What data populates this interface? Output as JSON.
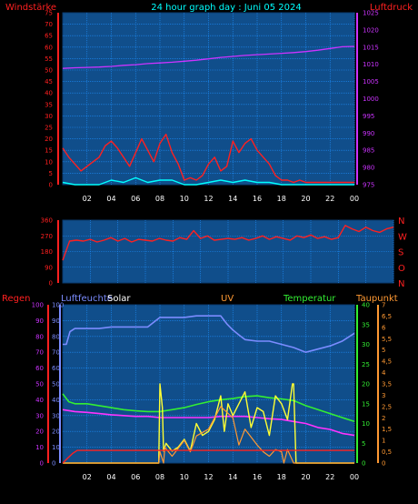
{
  "title": "24 hour graph day : Juni 05 2024",
  "colors": {
    "plot_bg": "#104e8b",
    "grid": "#1e90ff",
    "wind_gust": "#ff2020",
    "wind_avg": "#00ffff",
    "pressure": "#cc33ff",
    "direction": "#ff2020",
    "humidity": "#7b8cff",
    "solar": "#ffff33",
    "uv": "#ff9933",
    "temperature": "#33ee33",
    "dewpoint": "#ff33ff",
    "rain": "#ff2020",
    "label_red": "#ff2020",
    "label_purple": "#cc33ff",
    "label_blue": "#7b8cff",
    "label_green": "#33ee33",
    "label_orange": "#ff9933",
    "label_white": "#ffffff",
    "label_cyan": "#00ffff"
  },
  "chart_data": [
    {
      "type": "line",
      "panel": "wind-pressure",
      "x_ticks": [
        "02",
        "04",
        "06",
        "08",
        "10",
        "12",
        "14",
        "16",
        "18",
        "20",
        "22",
        "00"
      ],
      "left_axis": {
        "label": "Windstärke",
        "ticks": [
          0,
          5,
          10,
          15,
          20,
          25,
          30,
          35,
          40,
          45,
          50,
          55,
          60,
          65,
          70,
          75
        ],
        "range": [
          0,
          75
        ]
      },
      "right_axis": {
        "label": "Luftdruck",
        "ticks": [
          975,
          980,
          985,
          990,
          995,
          1000,
          1005,
          1010,
          1015,
          1020,
          1025
        ],
        "range": [
          975,
          1025
        ]
      },
      "series": [
        {
          "key": "pressure",
          "axis": "right",
          "x": [
            0,
            1,
            2,
            3,
            4,
            5,
            6,
            7,
            8,
            9,
            10,
            11,
            12,
            13,
            14,
            15,
            16,
            17,
            18,
            19,
            20,
            21,
            22,
            23,
            24
          ],
          "y": [
            1008.8,
            1009.0,
            1009.1,
            1009.2,
            1009.4,
            1009.7,
            1009.9,
            1010.2,
            1010.4,
            1010.6,
            1010.9,
            1011.2,
            1011.6,
            1012.0,
            1012.3,
            1012.6,
            1012.8,
            1013.0,
            1013.2,
            1013.4,
            1013.7,
            1014.1,
            1014.6,
            1015.1,
            1015.2
          ]
        },
        {
          "key": "wind_gust",
          "axis": "left",
          "x": [
            0,
            0.5,
            1,
            1.5,
            2,
            2.5,
            3,
            3.5,
            4,
            4.5,
            5,
            5.5,
            6,
            6.5,
            7,
            7.5,
            8,
            8.5,
            9,
            9.5,
            10,
            10.5,
            11,
            11.5,
            12,
            12.5,
            13,
            13.5,
            14,
            14.5,
            15,
            15.5,
            16,
            16.5,
            17,
            17.5,
            18,
            18.5,
            19,
            19.5,
            20,
            20.5,
            21,
            21.5,
            22,
            22.5,
            23,
            23.5,
            24
          ],
          "y": [
            16,
            12,
            9,
            6,
            8,
            10,
            12,
            17,
            19,
            16,
            12,
            8,
            14,
            20,
            15,
            10,
            18,
            22,
            14,
            9,
            2,
            3,
            2,
            4,
            9,
            12,
            6,
            8,
            19,
            14,
            18,
            20,
            15,
            12,
            9,
            4,
            2,
            2,
            1,
            2,
            1,
            1,
            1,
            1,
            1,
            1,
            1,
            1,
            1
          ]
        },
        {
          "key": "wind_avg",
          "axis": "left",
          "x": [
            0,
            1,
            2,
            3,
            4,
            5,
            6,
            7,
            8,
            9,
            10,
            11,
            12,
            13,
            14,
            15,
            16,
            17,
            18,
            19,
            20,
            21,
            22,
            23,
            24
          ],
          "y": [
            1,
            0,
            0,
            0,
            2,
            1,
            3,
            1,
            2,
            2,
            0,
            0,
            1,
            2,
            1,
            2,
            1,
            1,
            0,
            0,
            0,
            0,
            0,
            0,
            0
          ]
        }
      ]
    },
    {
      "type": "line",
      "panel": "wind-direction",
      "left_axis": {
        "ticks": [
          0,
          90,
          180,
          270,
          360
        ],
        "range": [
          0,
          360
        ]
      },
      "right_axis": {
        "ticks": [
          "N",
          "W",
          "S",
          "O",
          "N"
        ]
      },
      "series": [
        {
          "key": "direction",
          "x": [
            0,
            0.5,
            1,
            1.5,
            2,
            2.5,
            3,
            3.5,
            4,
            4.5,
            5,
            5.5,
            6,
            6.5,
            7,
            7.5,
            8,
            8.5,
            9,
            9.5,
            10,
            10.5,
            11,
            11.5,
            12,
            12.5,
            13,
            13.5,
            14,
            14.5,
            15,
            15.5,
            16,
            16.5,
            17,
            17.5,
            18,
            18.5,
            19,
            19.5,
            20,
            20.5,
            21,
            21.5,
            22,
            22.5,
            23,
            23.5,
            24
          ],
          "y": [
            130,
            240,
            245,
            240,
            250,
            235,
            245,
            260,
            240,
            255,
            235,
            250,
            245,
            240,
            255,
            245,
            240,
            260,
            250,
            300,
            255,
            270,
            245,
            250,
            255,
            250,
            260,
            245,
            255,
            270,
            250,
            265,
            255,
            245,
            270,
            260,
            275,
            255,
            265,
            250,
            260,
            330,
            310,
            295,
            320,
            300,
            290,
            310,
            320
          ]
        }
      ]
    },
    {
      "type": "line",
      "panel": "humidity-temp-solar",
      "x_ticks": [
        "02",
        "04",
        "06",
        "08",
        "10",
        "12",
        "14",
        "16",
        "18",
        "20",
        "22",
        "00"
      ],
      "labels": {
        "rain": "Regen",
        "humidity": "Luftfeuchte",
        "solar": "Solar",
        "uv": "UV",
        "temperature": "Temperatur",
        "dewpoint": "Taupunkt"
      },
      "left_axis_rain": {
        "ticks": [
          0,
          10,
          20,
          30,
          40,
          50,
          60,
          70,
          80,
          90,
          100
        ],
        "range": [
          0,
          100
        ]
      },
      "left_axis_humidity": {
        "ticks": [
          0,
          10,
          20,
          30,
          40,
          50,
          60,
          70,
          80,
          90,
          100
        ],
        "range": [
          0,
          100
        ]
      },
      "right_axis_temperature": {
        "ticks": [
          0,
          5,
          10,
          15,
          20,
          25,
          30,
          35,
          40
        ],
        "range": [
          0,
          40
        ]
      },
      "right_axis_uv": {
        "ticks": [
          0,
          0.5,
          1,
          1.5,
          2,
          2.5,
          3,
          3.5,
          4,
          4.5,
          5,
          5.5,
          6,
          6.5,
          7
        ],
        "range": [
          0,
          7
        ]
      },
      "series": [
        {
          "key": "humidity",
          "axis": "humidity",
          "x": [
            0,
            0.3,
            0.6,
            1,
            2,
            3,
            4,
            5,
            6,
            7,
            8,
            9,
            10,
            11,
            12,
            13,
            13.5,
            14,
            14.5,
            15,
            16,
            17,
            18,
            19,
            20,
            21,
            22,
            23,
            24
          ],
          "y": [
            75,
            75,
            83,
            85,
            85,
            85,
            86,
            86,
            86,
            86,
            92,
            92,
            92,
            93,
            93,
            93,
            88,
            84,
            81,
            78,
            77,
            77,
            75,
            73,
            70,
            72,
            74,
            77,
            82
          ]
        },
        {
          "key": "temperature",
          "axis": "temperature",
          "x": [
            0,
            0.5,
            1,
            2,
            3,
            4,
            5,
            6,
            7,
            8,
            9,
            10,
            11,
            12,
            13,
            14,
            15,
            16,
            17,
            18,
            19,
            20,
            21,
            22,
            23,
            24
          ],
          "y": [
            17.5,
            15.5,
            15,
            15,
            14.5,
            14,
            13.5,
            13.2,
            13,
            13,
            13.5,
            14,
            14.8,
            15.5,
            16,
            16.3,
            16.8,
            17,
            16.5,
            16.2,
            15.8,
            14.5,
            13.5,
            12.5,
            11.5,
            10.5
          ]
        },
        {
          "key": "dewpoint",
          "axis": "temperature",
          "x": [
            0,
            1,
            2,
            3,
            4,
            5,
            6,
            7,
            8,
            9,
            10,
            11,
            12,
            13,
            14,
            15,
            16,
            17,
            18,
            19,
            20,
            21,
            22,
            23,
            24
          ],
          "y": [
            13.5,
            13,
            12.8,
            12.5,
            12.2,
            12,
            11.8,
            11.8,
            11.5,
            11.5,
            11.5,
            11.5,
            11.5,
            11.8,
            11.8,
            11.8,
            11.5,
            11.2,
            11,
            10.5,
            10,
            9,
            8.5,
            7.5,
            7
          ]
        },
        {
          "key": "solar",
          "axis": "temperature",
          "x": [
            0,
            6,
            7,
            7.9,
            8,
            8.2,
            8.3,
            8.5,
            9,
            9.5,
            10,
            10.5,
            11,
            11.5,
            12,
            12.5,
            13,
            13.3,
            13.6,
            14,
            14.5,
            15,
            15.5,
            16,
            16.5,
            17,
            17.5,
            18,
            18.5,
            18.9,
            19,
            19.2,
            20,
            24
          ],
          "y": [
            0,
            0,
            0,
            0,
            20,
            14,
            3,
            5,
            3,
            4,
            6,
            3,
            10,
            7,
            8,
            11,
            17,
            8,
            15,
            12,
            15,
            18,
            9,
            14,
            13,
            7,
            17,
            15,
            11,
            20,
            20,
            0,
            0,
            0
          ]
        },
        {
          "key": "uv",
          "axis": "uv",
          "x": [
            0,
            7.9,
            8,
            8.3,
            8.4,
            9,
            10,
            10.5,
            11,
            12,
            13,
            14,
            14.5,
            15,
            16,
            16.5,
            17,
            17.5,
            18,
            18.2,
            18.5,
            19,
            24
          ],
          "y": [
            0,
            0,
            0.5,
            0,
            0.7,
            0.3,
            1,
            0.5,
            1.2,
            1.5,
            2.5,
            2.0,
            0.8,
            1.5,
            0.8,
            0.5,
            0.3,
            0.6,
            0.5,
            0,
            0.6,
            0,
            0
          ]
        },
        {
          "key": "rain",
          "axis": "rain",
          "x": [
            0,
            0.4,
            0.8,
            1.2,
            24
          ],
          "y": [
            0,
            3,
            6,
            8,
            8
          ]
        }
      ]
    }
  ]
}
